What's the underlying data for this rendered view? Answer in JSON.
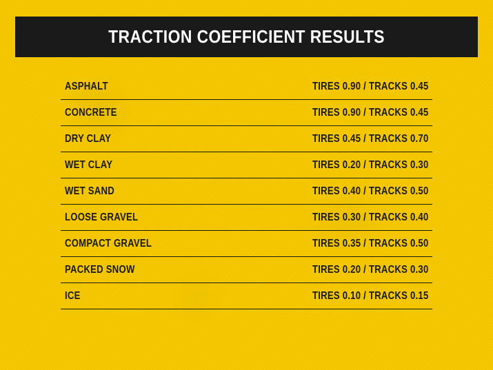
{
  "title": "TRACTION COEFFICIENT RESULTS",
  "colors": {
    "background": "#f5c800",
    "title_bar": "#1a1a1a",
    "title_text": "#ffffff",
    "row_text": "#1a1a1a",
    "divider": "#1a1a1a"
  },
  "typography": {
    "title_fontsize": 26,
    "row_fontsize": 16,
    "font_weight": 900,
    "font_family": "Arial Black, condensed"
  },
  "rows": [
    {
      "surface": "ASPHALT",
      "tires": "0.90",
      "tracks": "0.45"
    },
    {
      "surface": "CONCRETE",
      "tires": "0.90",
      "tracks": "0.45"
    },
    {
      "surface": "DRY CLAY",
      "tires": "0.45",
      "tracks": "0.70"
    },
    {
      "surface": "WET CLAY",
      "tires": "0.20",
      "tracks": "0.30"
    },
    {
      "surface": "WET SAND",
      "tires": "0.40",
      "tracks": "0.50"
    },
    {
      "surface": "LOOSE GRAVEL",
      "tires": "0.30",
      "tracks": "0.40"
    },
    {
      "surface": "COMPACT GRAVEL",
      "tires": "0.35",
      "tracks": "0.50"
    },
    {
      "surface": "PACKED SNOW",
      "tires": "0.20",
      "tracks": "0.30"
    },
    {
      "surface": "ICE",
      "tires": "0.10",
      "tracks": "0.15"
    }
  ],
  "value_format": "TIRES {tires} / TRACKS {tracks}"
}
